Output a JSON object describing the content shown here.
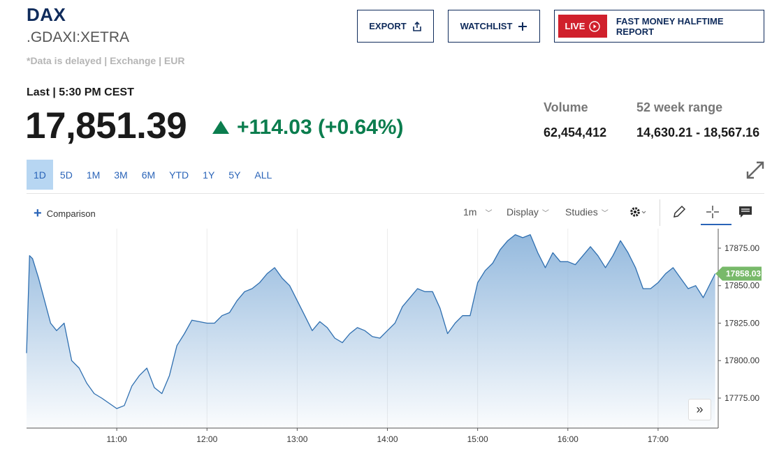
{
  "header": {
    "ticker": "DAX",
    "symbol": ".GDAXI:XETRA",
    "delay_note": "*Data is delayed | Exchange | EUR",
    "export_label": "EXPORT",
    "watchlist_label": "WATCHLIST",
    "live_badge": "LIVE",
    "live_title": "FAST MONEY HALFTIME REPORT"
  },
  "quote": {
    "last_line": "Last | 5:30 PM CEST",
    "price": "17,851.39",
    "change": "+114.03 (+0.64%)",
    "volume_label": "Volume",
    "volume": "62,454,412",
    "range_label": "52 week range",
    "range": "14,630.21 - 18,567.16",
    "up_color": "#0b7d4e"
  },
  "ranges": [
    "1D",
    "5D",
    "1M",
    "3M",
    "6M",
    "YTD",
    "1Y",
    "5Y",
    "ALL"
  ],
  "active_range": "1D",
  "toolbar": {
    "comparison": "Comparison",
    "interval": "1m",
    "display": "Display",
    "studies": "Studies"
  },
  "chart_data": {
    "type": "area",
    "line_color": "#2f6fb0",
    "fill_color": "#8fb6dc",
    "last_value_label": "17858.03",
    "last_value_color": "#78b96a",
    "y_ticks": [
      "17875.00",
      "17850.00",
      "17825.00",
      "17800.00",
      "17775.00"
    ],
    "x_ticks": [
      "11:00",
      "12:00",
      "13:00",
      "14:00",
      "15:00",
      "16:00",
      "17:00"
    ],
    "xlim": [
      "10:00",
      "17:40"
    ],
    "ylim": [
      17755,
      17888
    ],
    "x": [
      "10:00",
      "10:02",
      "10:04",
      "10:08",
      "10:12",
      "10:16",
      "10:20",
      "10:25",
      "10:30",
      "10:35",
      "10:40",
      "10:45",
      "10:50",
      "11:00",
      "11:05",
      "11:10",
      "11:15",
      "11:20",
      "11:25",
      "11:30",
      "11:35",
      "11:40",
      "11:45",
      "11:50",
      "12:00",
      "12:05",
      "12:10",
      "12:15",
      "12:20",
      "12:25",
      "12:30",
      "12:35",
      "12:40",
      "12:45",
      "12:50",
      "12:55",
      "13:00",
      "13:05",
      "13:10",
      "13:15",
      "13:20",
      "13:25",
      "13:30",
      "13:35",
      "13:40",
      "13:45",
      "13:50",
      "13:55",
      "14:00",
      "14:05",
      "14:10",
      "14:15",
      "14:20",
      "14:25",
      "14:30",
      "14:35",
      "14:40",
      "14:45",
      "14:50",
      "14:55",
      "15:00",
      "15:05",
      "15:10",
      "15:15",
      "15:20",
      "15:25",
      "15:30",
      "15:35",
      "15:40",
      "15:45",
      "15:50",
      "15:55",
      "16:00",
      "16:05",
      "16:10",
      "16:15",
      "16:20",
      "16:25",
      "16:30",
      "16:35",
      "16:40",
      "16:45",
      "16:50",
      "16:55",
      "17:00",
      "17:05",
      "17:10",
      "17:15",
      "17:20",
      "17:25",
      "17:30",
      "17:35",
      "17:38"
    ],
    "y": [
      17805,
      17870,
      17868,
      17855,
      17840,
      17825,
      17820,
      17825,
      17800,
      17795,
      17785,
      17778,
      17775,
      17768,
      17770,
      17783,
      17790,
      17795,
      17782,
      17778,
      17790,
      17810,
      17818,
      17827,
      17825,
      17825,
      17830,
      17832,
      17840,
      17846,
      17848,
      17852,
      17858,
      17862,
      17855,
      17850,
      17840,
      17830,
      17820,
      17826,
      17822,
      17815,
      17812,
      17818,
      17822,
      17820,
      17816,
      17815,
      17820,
      17825,
      17836,
      17842,
      17848,
      17846,
      17846,
      17835,
      17818,
      17825,
      17830,
      17830,
      17852,
      17860,
      17865,
      17874,
      17880,
      17884,
      17882,
      17884,
      17872,
      17862,
      17872,
      17866,
      17866,
      17864,
      17870,
      17876,
      17870,
      17862,
      17870,
      17880,
      17872,
      17862,
      17848,
      17848,
      17852,
      17858,
      17862,
      17855,
      17848,
      17850,
      17842,
      17852,
      17858
    ]
  }
}
